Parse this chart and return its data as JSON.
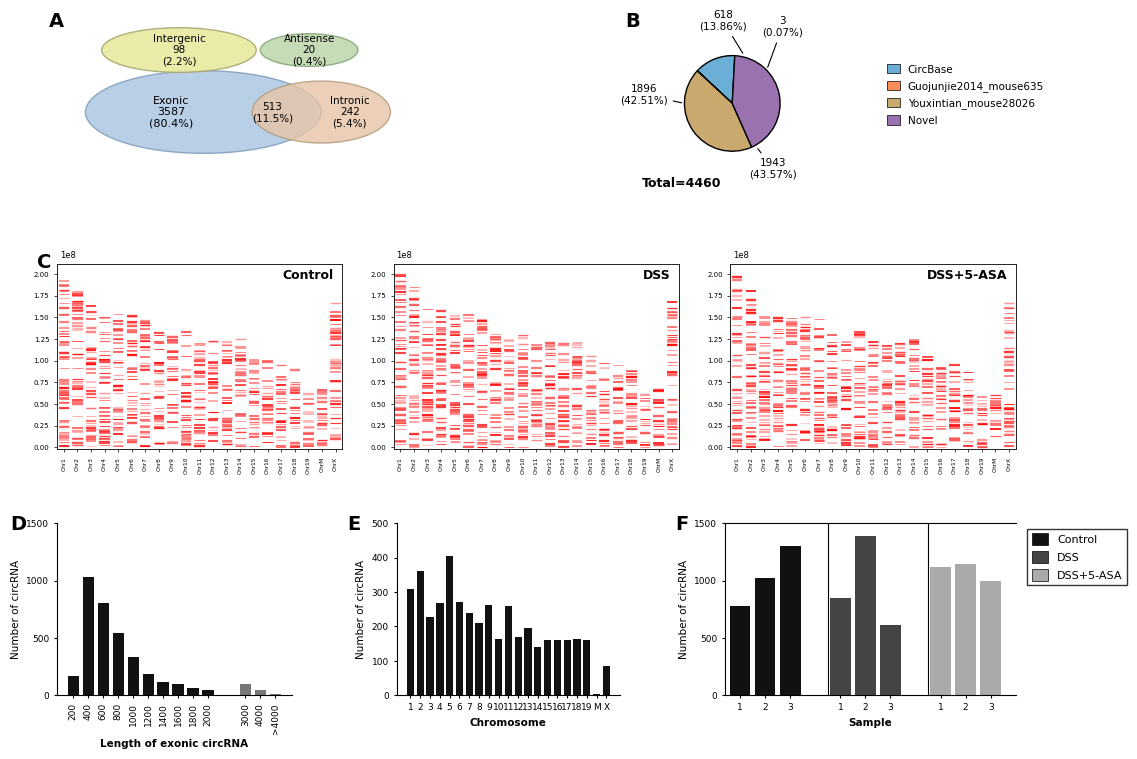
{
  "panel_A": {
    "exonic_color": "#a8c4e0",
    "intronic_color": "#e8c4a8",
    "intergenic_color": "#e8e8a0",
    "antisense_color": "#c0d8b0"
  },
  "panel_B": {
    "values": [
      618,
      3,
      1943,
      1896
    ],
    "labels": [
      "CircBase",
      "Guojunjie2014_mouse635",
      "Youxintian_mouse28026",
      "Novel"
    ],
    "colors": [
      "#6baed6",
      "#fc8d59",
      "#c9a96e",
      "#9b72b0"
    ],
    "total": "Total=4460"
  },
  "panel_D": {
    "cats1": [
      "200",
      "400",
      "600",
      "800",
      "1000",
      "1200",
      "1400",
      "1600",
      "1800",
      "2000"
    ],
    "vals1": [
      165,
      1030,
      800,
      540,
      335,
      185,
      120,
      95,
      65,
      45
    ],
    "cats2": [
      "3000",
      "4000",
      ">4000"
    ],
    "vals2": [
      95,
      45,
      10
    ],
    "xlabel": "Length of exonic circRNA",
    "ylabel": "Number of circRNA"
  },
  "panel_E": {
    "categories": [
      "1",
      "2",
      "3",
      "4",
      "5",
      "6",
      "7",
      "8",
      "9",
      "10",
      "11",
      "12",
      "13",
      "14",
      "15",
      "16",
      "17",
      "18",
      "19",
      "M",
      "X"
    ],
    "values": [
      308,
      362,
      228,
      268,
      405,
      270,
      240,
      210,
      263,
      165,
      260,
      170,
      195,
      140,
      162,
      162,
      162,
      165,
      5,
      85
    ],
    "xlabel": "Chromosome",
    "ylabel": "Number of circRNA"
  },
  "panel_F": {
    "control": [
      775,
      1025,
      1300
    ],
    "dss": [
      850,
      1390,
      610
    ],
    "dss5asa": [
      1120,
      1145,
      1000
    ],
    "colors": {
      "control": "#111111",
      "dss": "#444444",
      "dss5asa": "#aaaaaa"
    },
    "xlabel": "Sample",
    "ylabel": "Number of circRNA"
  },
  "panel_C": {
    "titles": [
      "Control",
      "DSS",
      "DSS+5-ASA"
    ],
    "chr_sizes": [
      195,
      182,
      160,
      156,
      152,
      149,
      145,
      130,
      124,
      131,
      122,
      120,
      120,
      125,
      104,
      98,
      95,
      90,
      61,
      65,
      171
    ],
    "chr_labels": [
      "Chr1",
      "Chr2",
      "Chr3",
      "Chr4",
      "Chr5",
      "Chr6",
      "Chr7",
      "Chr8",
      "Chr9",
      "Chr10",
      "Chr11",
      "Chr12",
      "Chr13",
      "Chr14",
      "Chr15",
      "Chr16",
      "Chr17",
      "Chr18",
      "Chr19",
      "ChrM",
      "ChrX"
    ]
  }
}
